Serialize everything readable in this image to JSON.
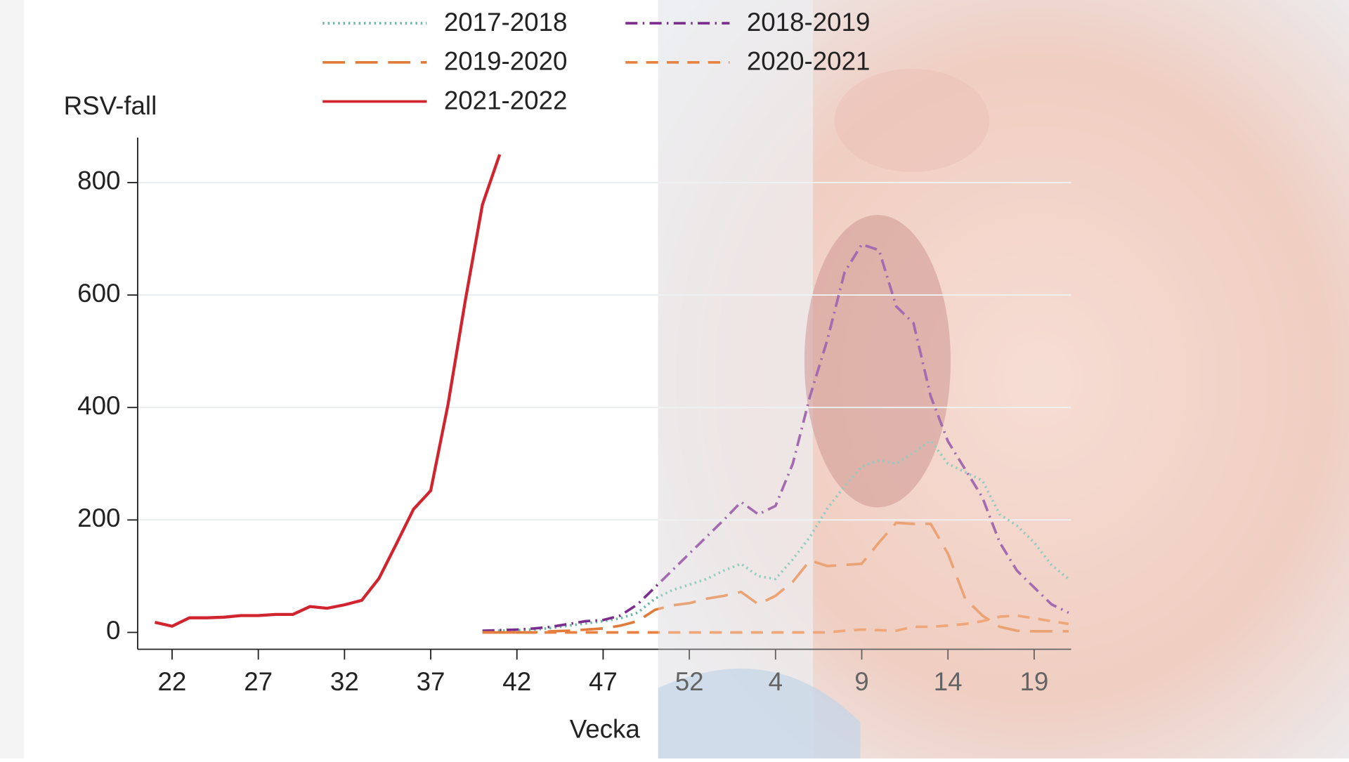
{
  "chart_data": {
    "type": "line",
    "y_label": "RSV-fall",
    "x_label": "Vecka",
    "categories": [
      null,
      "22",
      null,
      null,
      null,
      null,
      "27",
      null,
      null,
      null,
      null,
      "32",
      null,
      null,
      null,
      null,
      "37",
      null,
      null,
      null,
      null,
      "42",
      null,
      null,
      null,
      null,
      "47",
      null,
      null,
      null,
      null,
      "52",
      null,
      null,
      null,
      null,
      "4",
      null,
      null,
      null,
      null,
      "9",
      null,
      null,
      null,
      null,
      "14",
      null,
      null,
      null,
      null,
      "19",
      null,
      null
    ],
    "ylim": [
      -30,
      880
    ],
    "yticks": [
      0,
      200,
      400,
      600,
      800
    ],
    "grid": true,
    "series": [
      {
        "name": "2017-2018",
        "color": "#6ab5a5",
        "dash": "dotted",
        "values": [
          null,
          null,
          null,
          null,
          null,
          null,
          null,
          null,
          null,
          null,
          null,
          null,
          null,
          null,
          null,
          null,
          null,
          null,
          null,
          2,
          3,
          4,
          5,
          8,
          12,
          16,
          20,
          25,
          35,
          60,
          75,
          85,
          95,
          110,
          122,
          100,
          95,
          130,
          170,
          220,
          260,
          295,
          306,
          300,
          320,
          341,
          300,
          285,
          270,
          210,
          190,
          160,
          120,
          95
        ]
      },
      {
        "name": "2018-2019",
        "color": "#7b2d8e",
        "dash": "dashdot",
        "values": [
          null,
          null,
          null,
          null,
          null,
          null,
          null,
          null,
          null,
          null,
          null,
          null,
          null,
          null,
          null,
          null,
          null,
          null,
          null,
          3,
          4,
          5,
          7,
          10,
          15,
          20,
          22,
          30,
          50,
          80,
          110,
          140,
          170,
          200,
          232,
          210,
          225,
          300,
          420,
          520,
          640,
          690,
          680,
          580,
          550,
          420,
          340,
          290,
          240,
          160,
          110,
          80,
          50,
          35
        ]
      },
      {
        "name": "2019-2020",
        "color": "#e07b39",
        "dash": "longdash",
        "values": [
          null,
          null,
          null,
          null,
          null,
          null,
          null,
          null,
          null,
          null,
          null,
          null,
          null,
          null,
          null,
          null,
          null,
          null,
          null,
          0,
          0,
          0,
          0,
          2,
          3,
          5,
          7,
          12,
          20,
          40,
          48,
          52,
          60,
          65,
          72,
          50,
          65,
          90,
          128,
          118,
          120,
          122,
          160,
          195,
          193,
          193,
          140,
          60,
          30,
          10,
          3,
          2,
          2,
          2
        ]
      },
      {
        "name": "2020-2021",
        "color": "#e8803f",
        "dash": "shortdash",
        "values": [
          null,
          null,
          null,
          null,
          null,
          null,
          null,
          null,
          null,
          null,
          null,
          null,
          null,
          null,
          null,
          null,
          null,
          null,
          null,
          0,
          0,
          0,
          0,
          0,
          0,
          0,
          0,
          0,
          0,
          0,
          0,
          0,
          0,
          0,
          0,
          0,
          0,
          0,
          0,
          0,
          3,
          5,
          4,
          3,
          10,
          10,
          12,
          15,
          20,
          28,
          30,
          25,
          20,
          15
        ]
      },
      {
        "name": "2021-2022",
        "color": "#d0242e",
        "dash": "solid",
        "values": [
          18,
          11,
          26,
          26,
          27,
          30,
          30,
          32,
          32,
          46,
          43,
          49,
          57,
          96,
          157,
          219,
          252,
          405,
          589,
          761,
          850,
          null,
          null,
          null,
          null,
          null,
          null,
          null,
          null,
          null,
          null,
          null,
          null,
          null,
          null,
          null,
          null,
          null,
          null,
          null,
          null,
          null,
          null,
          null,
          null,
          null,
          null,
          null,
          null,
          null,
          null,
          null,
          null,
          null
        ]
      }
    ]
  }
}
